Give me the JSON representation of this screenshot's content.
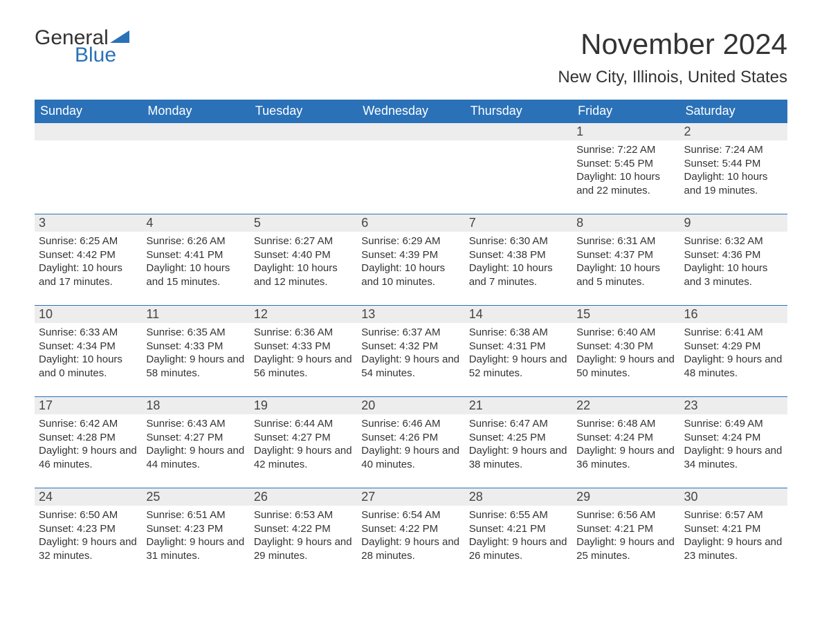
{
  "logo": {
    "word1": "General",
    "word2": "Blue"
  },
  "title": "November 2024",
  "location": "New City, Illinois, United States",
  "colors": {
    "header_bg": "#2a71b8",
    "header_text": "#ffffff",
    "daybar_bg": "#ededed",
    "border": "#2a71b8",
    "text": "#333333"
  },
  "day_headers": [
    "Sunday",
    "Monday",
    "Tuesday",
    "Wednesday",
    "Thursday",
    "Friday",
    "Saturday"
  ],
  "weeks": [
    [
      null,
      null,
      null,
      null,
      null,
      {
        "n": "1",
        "sunrise": "Sunrise: 7:22 AM",
        "sunset": "Sunset: 5:45 PM",
        "daylight": "Daylight: 10 hours and 22 minutes."
      },
      {
        "n": "2",
        "sunrise": "Sunrise: 7:24 AM",
        "sunset": "Sunset: 5:44 PM",
        "daylight": "Daylight: 10 hours and 19 minutes."
      }
    ],
    [
      {
        "n": "3",
        "sunrise": "Sunrise: 6:25 AM",
        "sunset": "Sunset: 4:42 PM",
        "daylight": "Daylight: 10 hours and 17 minutes."
      },
      {
        "n": "4",
        "sunrise": "Sunrise: 6:26 AM",
        "sunset": "Sunset: 4:41 PM",
        "daylight": "Daylight: 10 hours and 15 minutes."
      },
      {
        "n": "5",
        "sunrise": "Sunrise: 6:27 AM",
        "sunset": "Sunset: 4:40 PM",
        "daylight": "Daylight: 10 hours and 12 minutes."
      },
      {
        "n": "6",
        "sunrise": "Sunrise: 6:29 AM",
        "sunset": "Sunset: 4:39 PM",
        "daylight": "Daylight: 10 hours and 10 minutes."
      },
      {
        "n": "7",
        "sunrise": "Sunrise: 6:30 AM",
        "sunset": "Sunset: 4:38 PM",
        "daylight": "Daylight: 10 hours and 7 minutes."
      },
      {
        "n": "8",
        "sunrise": "Sunrise: 6:31 AM",
        "sunset": "Sunset: 4:37 PM",
        "daylight": "Daylight: 10 hours and 5 minutes."
      },
      {
        "n": "9",
        "sunrise": "Sunrise: 6:32 AM",
        "sunset": "Sunset: 4:36 PM",
        "daylight": "Daylight: 10 hours and 3 minutes."
      }
    ],
    [
      {
        "n": "10",
        "sunrise": "Sunrise: 6:33 AM",
        "sunset": "Sunset: 4:34 PM",
        "daylight": "Daylight: 10 hours and 0 minutes."
      },
      {
        "n": "11",
        "sunrise": "Sunrise: 6:35 AM",
        "sunset": "Sunset: 4:33 PM",
        "daylight": "Daylight: 9 hours and 58 minutes."
      },
      {
        "n": "12",
        "sunrise": "Sunrise: 6:36 AM",
        "sunset": "Sunset: 4:33 PM",
        "daylight": "Daylight: 9 hours and 56 minutes."
      },
      {
        "n": "13",
        "sunrise": "Sunrise: 6:37 AM",
        "sunset": "Sunset: 4:32 PM",
        "daylight": "Daylight: 9 hours and 54 minutes."
      },
      {
        "n": "14",
        "sunrise": "Sunrise: 6:38 AM",
        "sunset": "Sunset: 4:31 PM",
        "daylight": "Daylight: 9 hours and 52 minutes."
      },
      {
        "n": "15",
        "sunrise": "Sunrise: 6:40 AM",
        "sunset": "Sunset: 4:30 PM",
        "daylight": "Daylight: 9 hours and 50 minutes."
      },
      {
        "n": "16",
        "sunrise": "Sunrise: 6:41 AM",
        "sunset": "Sunset: 4:29 PM",
        "daylight": "Daylight: 9 hours and 48 minutes."
      }
    ],
    [
      {
        "n": "17",
        "sunrise": "Sunrise: 6:42 AM",
        "sunset": "Sunset: 4:28 PM",
        "daylight": "Daylight: 9 hours and 46 minutes."
      },
      {
        "n": "18",
        "sunrise": "Sunrise: 6:43 AM",
        "sunset": "Sunset: 4:27 PM",
        "daylight": "Daylight: 9 hours and 44 minutes."
      },
      {
        "n": "19",
        "sunrise": "Sunrise: 6:44 AM",
        "sunset": "Sunset: 4:27 PM",
        "daylight": "Daylight: 9 hours and 42 minutes."
      },
      {
        "n": "20",
        "sunrise": "Sunrise: 6:46 AM",
        "sunset": "Sunset: 4:26 PM",
        "daylight": "Daylight: 9 hours and 40 minutes."
      },
      {
        "n": "21",
        "sunrise": "Sunrise: 6:47 AM",
        "sunset": "Sunset: 4:25 PM",
        "daylight": "Daylight: 9 hours and 38 minutes."
      },
      {
        "n": "22",
        "sunrise": "Sunrise: 6:48 AM",
        "sunset": "Sunset: 4:24 PM",
        "daylight": "Daylight: 9 hours and 36 minutes."
      },
      {
        "n": "23",
        "sunrise": "Sunrise: 6:49 AM",
        "sunset": "Sunset: 4:24 PM",
        "daylight": "Daylight: 9 hours and 34 minutes."
      }
    ],
    [
      {
        "n": "24",
        "sunrise": "Sunrise: 6:50 AM",
        "sunset": "Sunset: 4:23 PM",
        "daylight": "Daylight: 9 hours and 32 minutes."
      },
      {
        "n": "25",
        "sunrise": "Sunrise: 6:51 AM",
        "sunset": "Sunset: 4:23 PM",
        "daylight": "Daylight: 9 hours and 31 minutes."
      },
      {
        "n": "26",
        "sunrise": "Sunrise: 6:53 AM",
        "sunset": "Sunset: 4:22 PM",
        "daylight": "Daylight: 9 hours and 29 minutes."
      },
      {
        "n": "27",
        "sunrise": "Sunrise: 6:54 AM",
        "sunset": "Sunset: 4:22 PM",
        "daylight": "Daylight: 9 hours and 28 minutes."
      },
      {
        "n": "28",
        "sunrise": "Sunrise: 6:55 AM",
        "sunset": "Sunset: 4:21 PM",
        "daylight": "Daylight: 9 hours and 26 minutes."
      },
      {
        "n": "29",
        "sunrise": "Sunrise: 6:56 AM",
        "sunset": "Sunset: 4:21 PM",
        "daylight": "Daylight: 9 hours and 25 minutes."
      },
      {
        "n": "30",
        "sunrise": "Sunrise: 6:57 AM",
        "sunset": "Sunset: 4:21 PM",
        "daylight": "Daylight: 9 hours and 23 minutes."
      }
    ]
  ]
}
